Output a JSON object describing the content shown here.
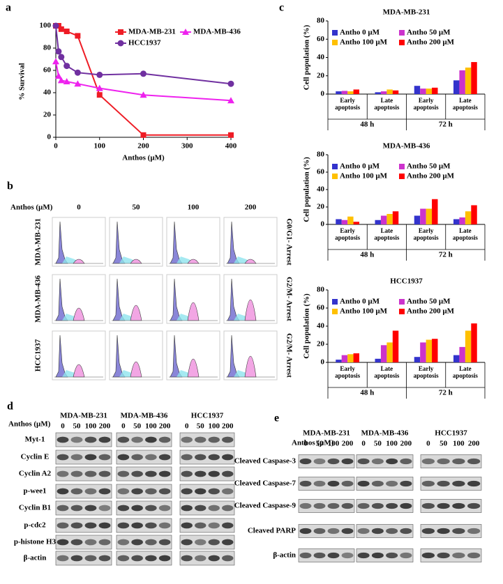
{
  "chart_data": [
    {
      "type": "line",
      "panel_label": "a",
      "xlabel": "Anthos (µM)",
      "ylabel": "% Survival",
      "x": [
        0,
        6.25,
        12.5,
        25,
        50,
        100,
        200,
        400
      ],
      "xlim": [
        0,
        400
      ],
      "xticks": [
        0,
        100,
        200,
        300,
        400
      ],
      "ylim": [
        0,
        100
      ],
      "yticks": [
        0,
        20,
        40,
        60,
        80,
        100
      ],
      "legend": "upper right",
      "series": [
        {
          "name": "MDA-MB-231",
          "color": "#ee1c25",
          "marker": "square",
          "values": [
            100,
            100,
            97,
            95,
            91,
            38,
            2,
            2
          ]
        },
        {
          "name": "MDA-MB-436",
          "color": "#ee22ee",
          "marker": "triangle",
          "values": [
            68,
            55,
            51,
            50,
            48,
            44,
            38,
            33
          ]
        },
        {
          "name": "HCC1937",
          "color": "#7030a0",
          "marker": "circle",
          "values": [
            100,
            77,
            72,
            64,
            58,
            56,
            57,
            48
          ]
        }
      ]
    },
    {
      "type": "bar",
      "panel_label": "c",
      "title": "MDA-MB-231",
      "ylabel": "Cell population (%)",
      "categories": [
        "Early apoptosis",
        "Late apoptosis",
        "Early apoptosis",
        "Late apoptosis"
      ],
      "groups": [
        "48 h",
        "72 h"
      ],
      "ylim": [
        0,
        80
      ],
      "yticks": [
        0,
        20,
        40,
        60,
        80
      ],
      "legend": "upper left",
      "series": [
        {
          "name": "Antho 0 µM",
          "color": "#3333cc",
          "values": [
            3,
            2,
            9,
            15
          ]
        },
        {
          "name": "Antho 50 µM",
          "color": "#cc33cc",
          "values": [
            3.5,
            3,
            6,
            26
          ]
        },
        {
          "name": "Antho 100 µM",
          "color": "#ffc000",
          "values": [
            3,
            5,
            6,
            29
          ]
        },
        {
          "name": "Antho 200 µM",
          "color": "#ff0000",
          "values": [
            5,
            4,
            7,
            35
          ]
        }
      ]
    },
    {
      "type": "bar",
      "title": "MDA-MB-436",
      "ylabel": "Cell population (%)",
      "categories": [
        "Early apoptosis",
        "Late apoptosis",
        "Early apoptosis",
        "Late apoptosis"
      ],
      "groups": [
        "48 h",
        "72 h"
      ],
      "ylim": [
        0,
        80
      ],
      "yticks": [
        0,
        20,
        40,
        60,
        80
      ],
      "legend": "upper left",
      "series": [
        {
          "name": "Antho 0 µM",
          "color": "#3333cc",
          "values": [
            6,
            5,
            10,
            6
          ]
        },
        {
          "name": "Antho 50 µM",
          "color": "#cc33cc",
          "values": [
            5,
            10,
            18,
            8
          ]
        },
        {
          "name": "Antho 100 µM",
          "color": "#ffc000",
          "values": [
            9,
            12,
            18,
            15
          ]
        },
        {
          "name": "Antho 200 µM",
          "color": "#ff0000",
          "values": [
            3,
            15,
            29,
            22
          ]
        }
      ]
    },
    {
      "type": "bar",
      "title": "HCC1937",
      "ylabel": "Cell population (%)",
      "categories": [
        "Early apoptosis",
        "Late apoptosis",
        "Early apoptosis",
        "Late apoptosis"
      ],
      "groups": [
        "48 h",
        "72 h"
      ],
      "ylim": [
        0,
        80
      ],
      "yticks": [
        0,
        20,
        40,
        60,
        80
      ],
      "legend": "upper left",
      "series": [
        {
          "name": "Antho 0 µM",
          "color": "#3333cc",
          "values": [
            3,
            4,
            6,
            8
          ]
        },
        {
          "name": "Antho 50 µM",
          "color": "#cc33cc",
          "values": [
            8,
            19,
            22,
            17
          ]
        },
        {
          "name": "Antho 100 µM",
          "color": "#ffc000",
          "values": [
            9,
            22,
            25,
            35
          ]
        },
        {
          "name": "Antho 200 µM",
          "color": "#ff0000",
          "values": [
            10,
            35,
            26,
            43
          ]
        }
      ]
    }
  ],
  "flow": {
    "panel_label": "b",
    "dose_label": "Anthos (µM)",
    "doses": [
      "0",
      "50",
      "100",
      "200"
    ],
    "rows": [
      {
        "cell_line": "MDA-MB-231",
        "arrest": "G0/G1- Arrest"
      },
      {
        "cell_line": "MDA-MB-436",
        "arrest": "G2/M- Arrest"
      },
      {
        "cell_line": "HCC1937",
        "arrest": "G2/M- Arrest"
      }
    ]
  },
  "blot_d": {
    "panel_label": "d",
    "dose_label": "Anthos (µM)",
    "cell_lines": [
      "MDA-MB-231",
      "MDA-MB-436",
      "HCC1937"
    ],
    "doses": [
      "0",
      "50",
      "100",
      "200"
    ],
    "proteins": [
      "Myt-1",
      "Cyclin E",
      "Cyclin A2",
      "p-wee1",
      "Cyclin B1",
      "p-cdc2",
      "p-histone H3",
      "β-actin"
    ]
  },
  "blot_e": {
    "panel_label": "e",
    "dose_label": "Anthos (µM)",
    "cell_lines": [
      "MDA-MB-231",
      "MDA-MB-436",
      "HCC1937"
    ],
    "doses": [
      "0",
      "50",
      "100",
      "200"
    ],
    "proteins": [
      "Cleaved Caspase-3",
      "Cleaved Caspase-7",
      "Cleaved Caspase-9",
      "Cleaved PARP",
      "β-actin"
    ]
  }
}
